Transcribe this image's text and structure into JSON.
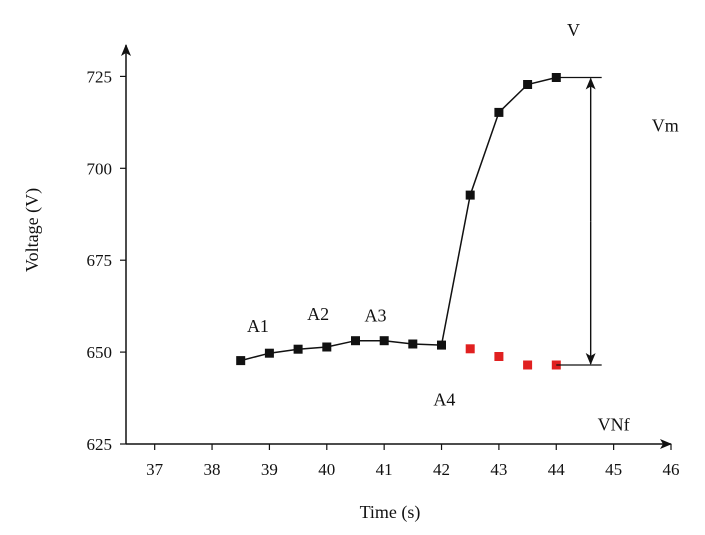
{
  "chart_data": {
    "type": "line",
    "xlabel": "Time (s)",
    "ylabel": "Voltage (V)",
    "xlim": [
      36.5,
      46
    ],
    "ylim": [
      625,
      733
    ],
    "x_ticks": [
      37,
      38,
      39,
      40,
      41,
      42,
      43,
      44,
      45,
      46
    ],
    "y_ticks": [
      625,
      650,
      675,
      700,
      725
    ],
    "series": [
      {
        "name": "V",
        "color": "#111111",
        "marker": "square",
        "line": true,
        "x": [
          38.5,
          39.0,
          39.5,
          40.0,
          40.5,
          41.0,
          41.5,
          42.0,
          42.5,
          43.0,
          43.5,
          44.0
        ],
        "y": [
          647.7,
          649.7,
          650.8,
          651.4,
          653.1,
          653.1,
          652.2,
          651.9,
          692.7,
          715.2,
          722.8,
          724.7
        ]
      },
      {
        "name": "VNf",
        "color": "#e02020",
        "marker": "square",
        "line": false,
        "x": [
          42.5,
          43.0,
          43.5,
          44.0
        ],
        "y": [
          650.9,
          648.8,
          646.5,
          646.5
        ]
      }
    ],
    "annotations": {
      "points": [
        {
          "text": "A1",
          "x": 38.8,
          "y": 655.5
        },
        {
          "text": "A2",
          "x": 39.85,
          "y": 658.7
        },
        {
          "text": "A3",
          "x": 40.85,
          "y": 658.3
        },
        {
          "text": "A4",
          "x": 42.05,
          "y": 635.5
        },
        {
          "text": "V",
          "x": 44.3,
          "y": 736.0
        },
        {
          "text": "Vm",
          "x": 45.9,
          "y": 710.0
        },
        {
          "text": "VNf",
          "x": 45.0,
          "y": 628.7
        }
      ],
      "vm_arrow": {
        "x": 44.6,
        "y_top": 724.7,
        "y_bottom": 646.5
      }
    }
  }
}
